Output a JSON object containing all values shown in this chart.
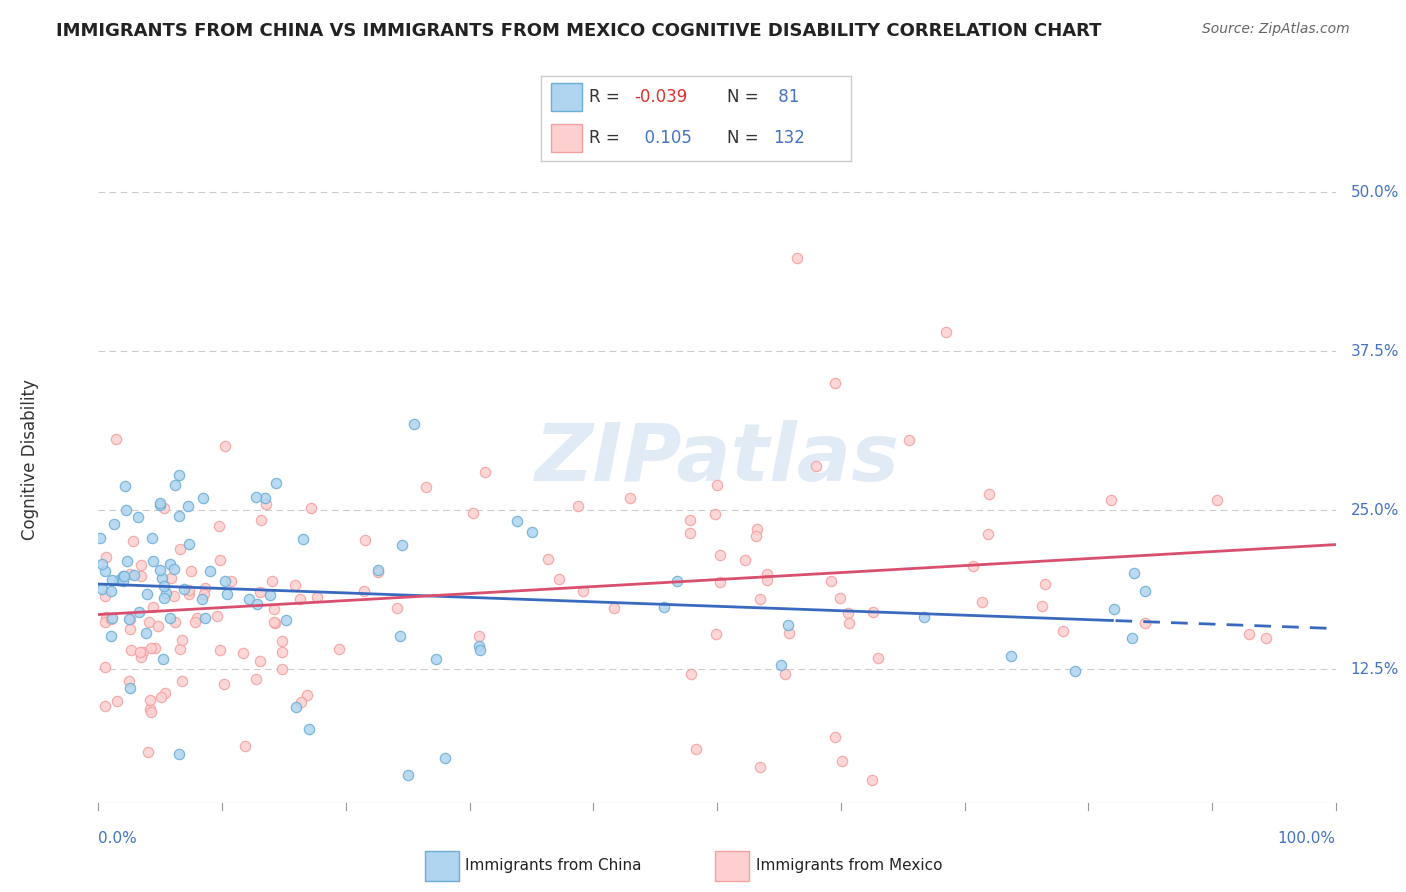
{
  "title": "IMMIGRANTS FROM CHINA VS IMMIGRANTS FROM MEXICO COGNITIVE DISABILITY CORRELATION CHART",
  "source": "Source: ZipAtlas.com",
  "ylabel": "Cognitive Disability",
  "yticks": [
    0.125,
    0.25,
    0.375,
    0.5
  ],
  "ytick_labels": [
    "12.5%",
    "25.0%",
    "37.5%",
    "50.0%"
  ],
  "xlim": [
    0,
    1
  ],
  "ylim": [
    0.02,
    0.56
  ],
  "china_color_edge": "#6baed6",
  "china_color_fill": "#aed4ef",
  "mexico_color_edge": "#f4a0a0",
  "mexico_color_fill": "#fdd0d0",
  "trend_china_color": "#3a6abf",
  "trend_mexico_color": "#d94f6e",
  "china_R": -0.039,
  "china_N": 81,
  "mexico_R": 0.105,
  "mexico_N": 132,
  "watermark": "ZIPatlas",
  "legend_R_color": "#d62728",
  "legend_N_color": "#1f77b4",
  "axis_color": "#4472c4",
  "grid_color": "#cccccc",
  "title_fontsize": 13,
  "source_fontsize": 10,
  "ytick_fontsize": 11,
  "xtick_fontsize": 11,
  "ylabel_fontsize": 12,
  "legend_fontsize": 12,
  "scatter_size": 55,
  "scatter_alpha": 0.85,
  "trend_linewidth": 2.0,
  "china_trend_start_y": 0.192,
  "china_trend_slope": -0.035,
  "mexico_trend_start_y": 0.168,
  "mexico_trend_slope": 0.055,
  "dashed_split": 0.82
}
